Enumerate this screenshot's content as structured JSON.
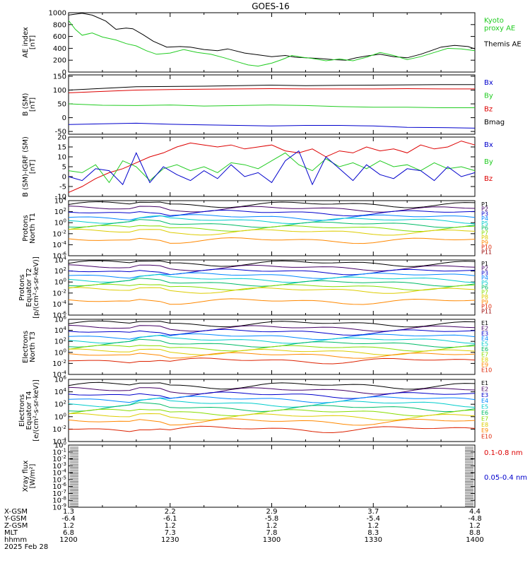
{
  "title": "GOES-16",
  "date_label": "2025 Feb 28",
  "ephemeris": {
    "labels": [
      "X-GSM",
      "Y-GSM",
      "Z-GSM",
      "MLT",
      "hhmm"
    ],
    "columns": [
      {
        "x": 1200,
        "values": [
          "1.3",
          "-6.4",
          "1.2",
          "6.8",
          "1200"
        ]
      },
      {
        "x": 1230,
        "values": [
          "2.2",
          "-6.1",
          "1.2",
          "7.3",
          "1230"
        ]
      },
      {
        "x": 1300,
        "values": [
          "2.9",
          "-5.8",
          "1.2",
          "7.8",
          "1300"
        ]
      },
      {
        "x": 1330,
        "values": [
          "3.7",
          "-5.4",
          "1.2",
          "8.3",
          "1330"
        ]
      },
      {
        "x": 1400,
        "values": [
          "4.4",
          "-4.8",
          "1.2",
          "8.8",
          "1400"
        ]
      }
    ]
  },
  "colors": {
    "black": "#000000",
    "green": "#22cc22",
    "red": "#dd0000",
    "blue": "#0000cc"
  },
  "chart_data": [
    {
      "type": "line",
      "id": "ae",
      "ylabel": "AE index\n[nT]",
      "ylim": [
        0,
        1000
      ],
      "yticks": [
        "0",
        "200",
        "400",
        "600",
        "800",
        "1000"
      ],
      "yvals": [
        0,
        200,
        400,
        600,
        800,
        1000
      ],
      "legend": [
        {
          "name": "Kyoto\nproxy AE",
          "color": "#22cc22"
        },
        {
          "name": "Themis AE",
          "color": "#000000"
        }
      ],
      "series": [
        {
          "name": "Themis AE",
          "color": "#000000",
          "x": [
            0,
            4,
            7,
            11,
            14,
            17,
            19,
            22,
            25,
            29,
            33,
            36,
            40,
            44,
            47,
            52,
            56,
            60,
            64,
            67,
            70,
            74,
            78,
            82,
            85,
            88,
            92,
            96,
            100,
            104,
            107,
            110,
            114,
            118,
            120
          ],
          "y": [
            960,
            990,
            960,
            860,
            720,
            740,
            730,
            630,
            520,
            420,
            430,
            420,
            380,
            360,
            390,
            320,
            290,
            260,
            280,
            250,
            240,
            230,
            210,
            200,
            240,
            270,
            300,
            260,
            240,
            300,
            360,
            420,
            450,
            430,
            390
          ]
        },
        {
          "name": "Kyoto proxy AE",
          "color": "#22cc22",
          "x": [
            0,
            2,
            4,
            7,
            10,
            14,
            17,
            20,
            23,
            26,
            30,
            34,
            38,
            42,
            46,
            50,
            53,
            56,
            60,
            63,
            66,
            69,
            72,
            76,
            80,
            84,
            88,
            92,
            96,
            100,
            104,
            108,
            112,
            116,
            120
          ],
          "y": [
            870,
            720,
            620,
            660,
            590,
            540,
            480,
            440,
            360,
            300,
            320,
            380,
            330,
            300,
            240,
            170,
            120,
            100,
            150,
            210,
            280,
            250,
            230,
            190,
            220,
            190,
            250,
            330,
            280,
            210,
            260,
            330,
            400,
            390,
            360
          ]
        }
      ]
    },
    {
      "type": "line",
      "id": "bsm",
      "ylabel": "B (SM)\n[nT]",
      "ylim": [
        -60,
        155
      ],
      "yticks": [
        "-50",
        "0",
        "50",
        "100",
        "150"
      ],
      "yvals": [
        -50,
        0,
        50,
        100,
        150
      ],
      "legend": [
        {
          "name": "Bx",
          "color": "#0000cc"
        },
        {
          "name": "By",
          "color": "#22cc22"
        },
        {
          "name": "Bz",
          "color": "#dd0000"
        },
        {
          "name": "Bmag",
          "color": "#000000"
        }
      ],
      "series": [
        {
          "name": "Bmag",
          "color": "#000000",
          "x": [
            0,
            10,
            20,
            30,
            40,
            50,
            60,
            70,
            80,
            90,
            100,
            110,
            120
          ],
          "y": [
            100,
            106,
            112,
            113,
            114,
            116,
            118,
            116,
            117,
            118,
            119,
            120,
            120
          ]
        },
        {
          "name": "Bz",
          "color": "#dd0000",
          "x": [
            0,
            10,
            20,
            30,
            40,
            50,
            60,
            70,
            80,
            90,
            100,
            110,
            120
          ],
          "y": [
            90,
            95,
            100,
            102,
            103,
            104,
            105,
            104,
            104,
            104,
            105,
            104,
            104
          ]
        },
        {
          "name": "By",
          "color": "#22cc22",
          "x": [
            0,
            10,
            20,
            30,
            40,
            50,
            60,
            70,
            80,
            90,
            100,
            110,
            120
          ],
          "y": [
            50,
            45,
            44,
            46,
            42,
            44,
            46,
            44,
            40,
            38,
            38,
            36,
            36
          ]
        },
        {
          "name": "Bx",
          "color": "#0000cc",
          "x": [
            0,
            10,
            20,
            30,
            40,
            50,
            60,
            70,
            80,
            90,
            100,
            110,
            120
          ],
          "y": [
            -25,
            -22,
            -20,
            -24,
            -26,
            -28,
            -30,
            -28,
            -28,
            -30,
            -35,
            -36,
            -38
          ]
        }
      ]
    },
    {
      "type": "line",
      "id": "bdiff",
      "ylabel": "B (SM)-IGRF (SM)\n[nT]",
      "ylim": [
        -10,
        20
      ],
      "yticks": [
        "-10",
        "-5",
        "0",
        "5",
        "10",
        "15",
        "20"
      ],
      "yvals": [
        -10,
        -5,
        0,
        5,
        10,
        15,
        20
      ],
      "legend": [
        {
          "name": "Bx",
          "color": "#0000cc"
        },
        {
          "name": "By",
          "color": "#22cc22"
        },
        {
          "name": "Bz",
          "color": "#dd0000"
        }
      ],
      "series": [
        {
          "name": "Bz",
          "color": "#dd0000",
          "x": [
            0,
            4,
            8,
            12,
            16,
            20,
            24,
            28,
            32,
            36,
            40,
            44,
            48,
            52,
            56,
            60,
            64,
            68,
            72,
            76,
            80,
            84,
            88,
            92,
            96,
            100,
            104,
            108,
            112,
            116,
            120
          ],
          "y": [
            -8,
            -5,
            -1,
            2,
            4,
            7,
            10,
            12,
            15,
            17,
            16,
            15,
            16,
            14,
            15,
            16,
            13,
            12,
            14,
            10,
            13,
            12,
            15,
            13,
            14,
            12,
            16,
            14,
            15,
            18,
            16
          ]
        },
        {
          "name": "By",
          "color": "#22cc22",
          "x": [
            0,
            4,
            8,
            12,
            16,
            20,
            24,
            28,
            32,
            36,
            40,
            44,
            48,
            52,
            56,
            60,
            64,
            68,
            72,
            76,
            80,
            84,
            88,
            92,
            96,
            100,
            104,
            108,
            112,
            116,
            120
          ],
          "y": [
            3,
            2,
            6,
            -3,
            8,
            5,
            -2,
            4,
            6,
            3,
            5,
            2,
            7,
            6,
            4,
            8,
            12,
            6,
            3,
            9,
            5,
            7,
            4,
            8,
            5,
            6,
            3,
            7,
            4,
            5,
            3
          ]
        },
        {
          "name": "Bx",
          "color": "#0000cc",
          "x": [
            0,
            4,
            8,
            12,
            16,
            20,
            24,
            28,
            32,
            36,
            40,
            44,
            48,
            52,
            56,
            60,
            64,
            68,
            72,
            76,
            80,
            84,
            88,
            92,
            96,
            100,
            104,
            108,
            112,
            116,
            120
          ],
          "y": [
            0,
            -2,
            4,
            3,
            -4,
            12,
            -3,
            5,
            1,
            -2,
            3,
            -1,
            6,
            0,
            2,
            -3,
            8,
            13,
            -4,
            10,
            4,
            -2,
            6,
            1,
            -1,
            4,
            3,
            -2,
            5,
            0,
            2
          ]
        }
      ]
    },
    {
      "type": "line",
      "id": "pn",
      "logy": true,
      "ylabel": "Protons\nNorth T1",
      "ylim": [
        -6,
        4
      ],
      "yticks": [
        "10^-6",
        "10^-4",
        "10^-2",
        "10^0",
        "10^2",
        "10^4"
      ],
      "yvals": [
        -6,
        -4,
        -2,
        0,
        2,
        4
      ],
      "legend": [
        {
          "name": "P1",
          "color": "#000000"
        },
        {
          "name": "P2",
          "color": "#440066"
        },
        {
          "name": "P3",
          "color": "#0000cc"
        },
        {
          "name": "P4",
          "color": "#0088ff"
        },
        {
          "name": "P5",
          "color": "#00cccc"
        },
        {
          "name": "P6",
          "color": "#00bb66"
        },
        {
          "name": "P7",
          "color": "#88dd00"
        },
        {
          "name": "P8",
          "color": "#ddcc00"
        },
        {
          "name": "P9",
          "color": "#ff8800"
        },
        {
          "name": "P10",
          "color": "#dd2200"
        },
        {
          "name": "P11",
          "color": "#990000"
        }
      ],
      "bands": [
        3.3,
        2.5,
        1.8,
        1.0,
        0.4,
        -0.3,
        -1.0,
        -1.7,
        -3.2
      ]
    },
    {
      "type": "line",
      "id": "pe",
      "logy": true,
      "ylabel": "Protons\nEquator T2\n[p/(cm²-s-sr-keV)]",
      "ylim": [
        -6,
        4
      ],
      "yticks": [
        "10^-6",
        "10^-4",
        "10^-2",
        "10^0",
        "10^2",
        "10^4"
      ],
      "yvals": [
        -6,
        -4,
        -2,
        0,
        2,
        4
      ],
      "legend": [
        {
          "name": "P1",
          "color": "#000000"
        },
        {
          "name": "P2",
          "color": "#440066"
        },
        {
          "name": "P3",
          "color": "#0000cc"
        },
        {
          "name": "P4",
          "color": "#0088ff"
        },
        {
          "name": "P5",
          "color": "#00cccc"
        },
        {
          "name": "P6",
          "color": "#00bb66"
        },
        {
          "name": "P7",
          "color": "#88dd00"
        },
        {
          "name": "P8",
          "color": "#ddcc00"
        },
        {
          "name": "P9",
          "color": "#ff8800"
        },
        {
          "name": "P10",
          "color": "#dd2200"
        },
        {
          "name": "P11",
          "color": "#990000"
        }
      ],
      "bands": [
        3.4,
        2.6,
        1.9,
        1.2,
        0.5,
        -0.2,
        -0.9,
        -1.5,
        -3.5
      ]
    },
    {
      "type": "line",
      "id": "en",
      "logy": true,
      "ylabel": "Electrons\nNorth T3",
      "ylim": [
        -4,
        6
      ],
      "yticks": [
        "10^-4",
        "10^-2",
        "10^0",
        "10^2",
        "10^4",
        "10^6"
      ],
      "yvals": [
        -4,
        -2,
        0,
        2,
        4,
        6
      ],
      "legend": [
        {
          "name": "E1",
          "color": "#000000"
        },
        {
          "name": "E2",
          "color": "#440066"
        },
        {
          "name": "E3",
          "color": "#0000cc"
        },
        {
          "name": "E4",
          "color": "#0088ff"
        },
        {
          "name": "E5",
          "color": "#00cccc"
        },
        {
          "name": "E6",
          "color": "#00bb66"
        },
        {
          "name": "E7",
          "color": "#88dd00"
        },
        {
          "name": "E8",
          "color": "#ddcc00"
        },
        {
          "name": "E9",
          "color": "#ff8800"
        },
        {
          "name": "E10",
          "color": "#dd2200"
        }
      ],
      "bands": [
        5.2,
        4.4,
        3.7,
        2.9,
        2.2,
        1.5,
        0.8,
        0.1,
        -0.5,
        -1.5
      ]
    },
    {
      "type": "line",
      "id": "ee",
      "logy": true,
      "ylabel": "Electrons\nEquator T4\n[e/(cm²-s-sr-keV)]",
      "ylim": [
        -4,
        6
      ],
      "yticks": [
        "10^-4",
        "10^-2",
        "10^0",
        "10^2",
        "10^4",
        "10^6"
      ],
      "yvals": [
        -4,
        -2,
        0,
        2,
        4,
        6
      ],
      "legend": [
        {
          "name": "E1",
          "color": "#000000"
        },
        {
          "name": "E2",
          "color": "#440066"
        },
        {
          "name": "E3",
          "color": "#0000cc"
        },
        {
          "name": "E4",
          "color": "#0088ff"
        },
        {
          "name": "E5",
          "color": "#00cccc"
        },
        {
          "name": "E6",
          "color": "#00bb66"
        },
        {
          "name": "E7",
          "color": "#88dd00"
        },
        {
          "name": "E8",
          "color": "#ddcc00"
        },
        {
          "name": "E9",
          "color": "#ff8800"
        },
        {
          "name": "E10",
          "color": "#dd2200"
        }
      ],
      "bands": [
        5.0,
        4.2,
        3.5,
        2.8,
        2.1,
        1.4,
        0.7,
        0.0,
        -0.8,
        -2.0
      ]
    },
    {
      "type": "line",
      "id": "xray",
      "logy": true,
      "ylabel": "Xray flux\n[W/m²]",
      "ylim": [
        -9,
        0
      ],
      "yticks": [
        "10^-9",
        "10^-8",
        "10^-7",
        "10^-6",
        "10^-5",
        "10^-4",
        "10^-3",
        "10^-2",
        "10^-1",
        "10^0"
      ],
      "yvals": [
        -9,
        -8,
        -7,
        -6,
        -5,
        -4,
        -3,
        -2,
        -1,
        0
      ],
      "legend": [
        {
          "name": "0.1-0.8 nm",
          "color": "#dd0000"
        },
        {
          "name": "0.05-0.4 nm",
          "color": "#0000cc"
        }
      ],
      "series": []
    }
  ]
}
